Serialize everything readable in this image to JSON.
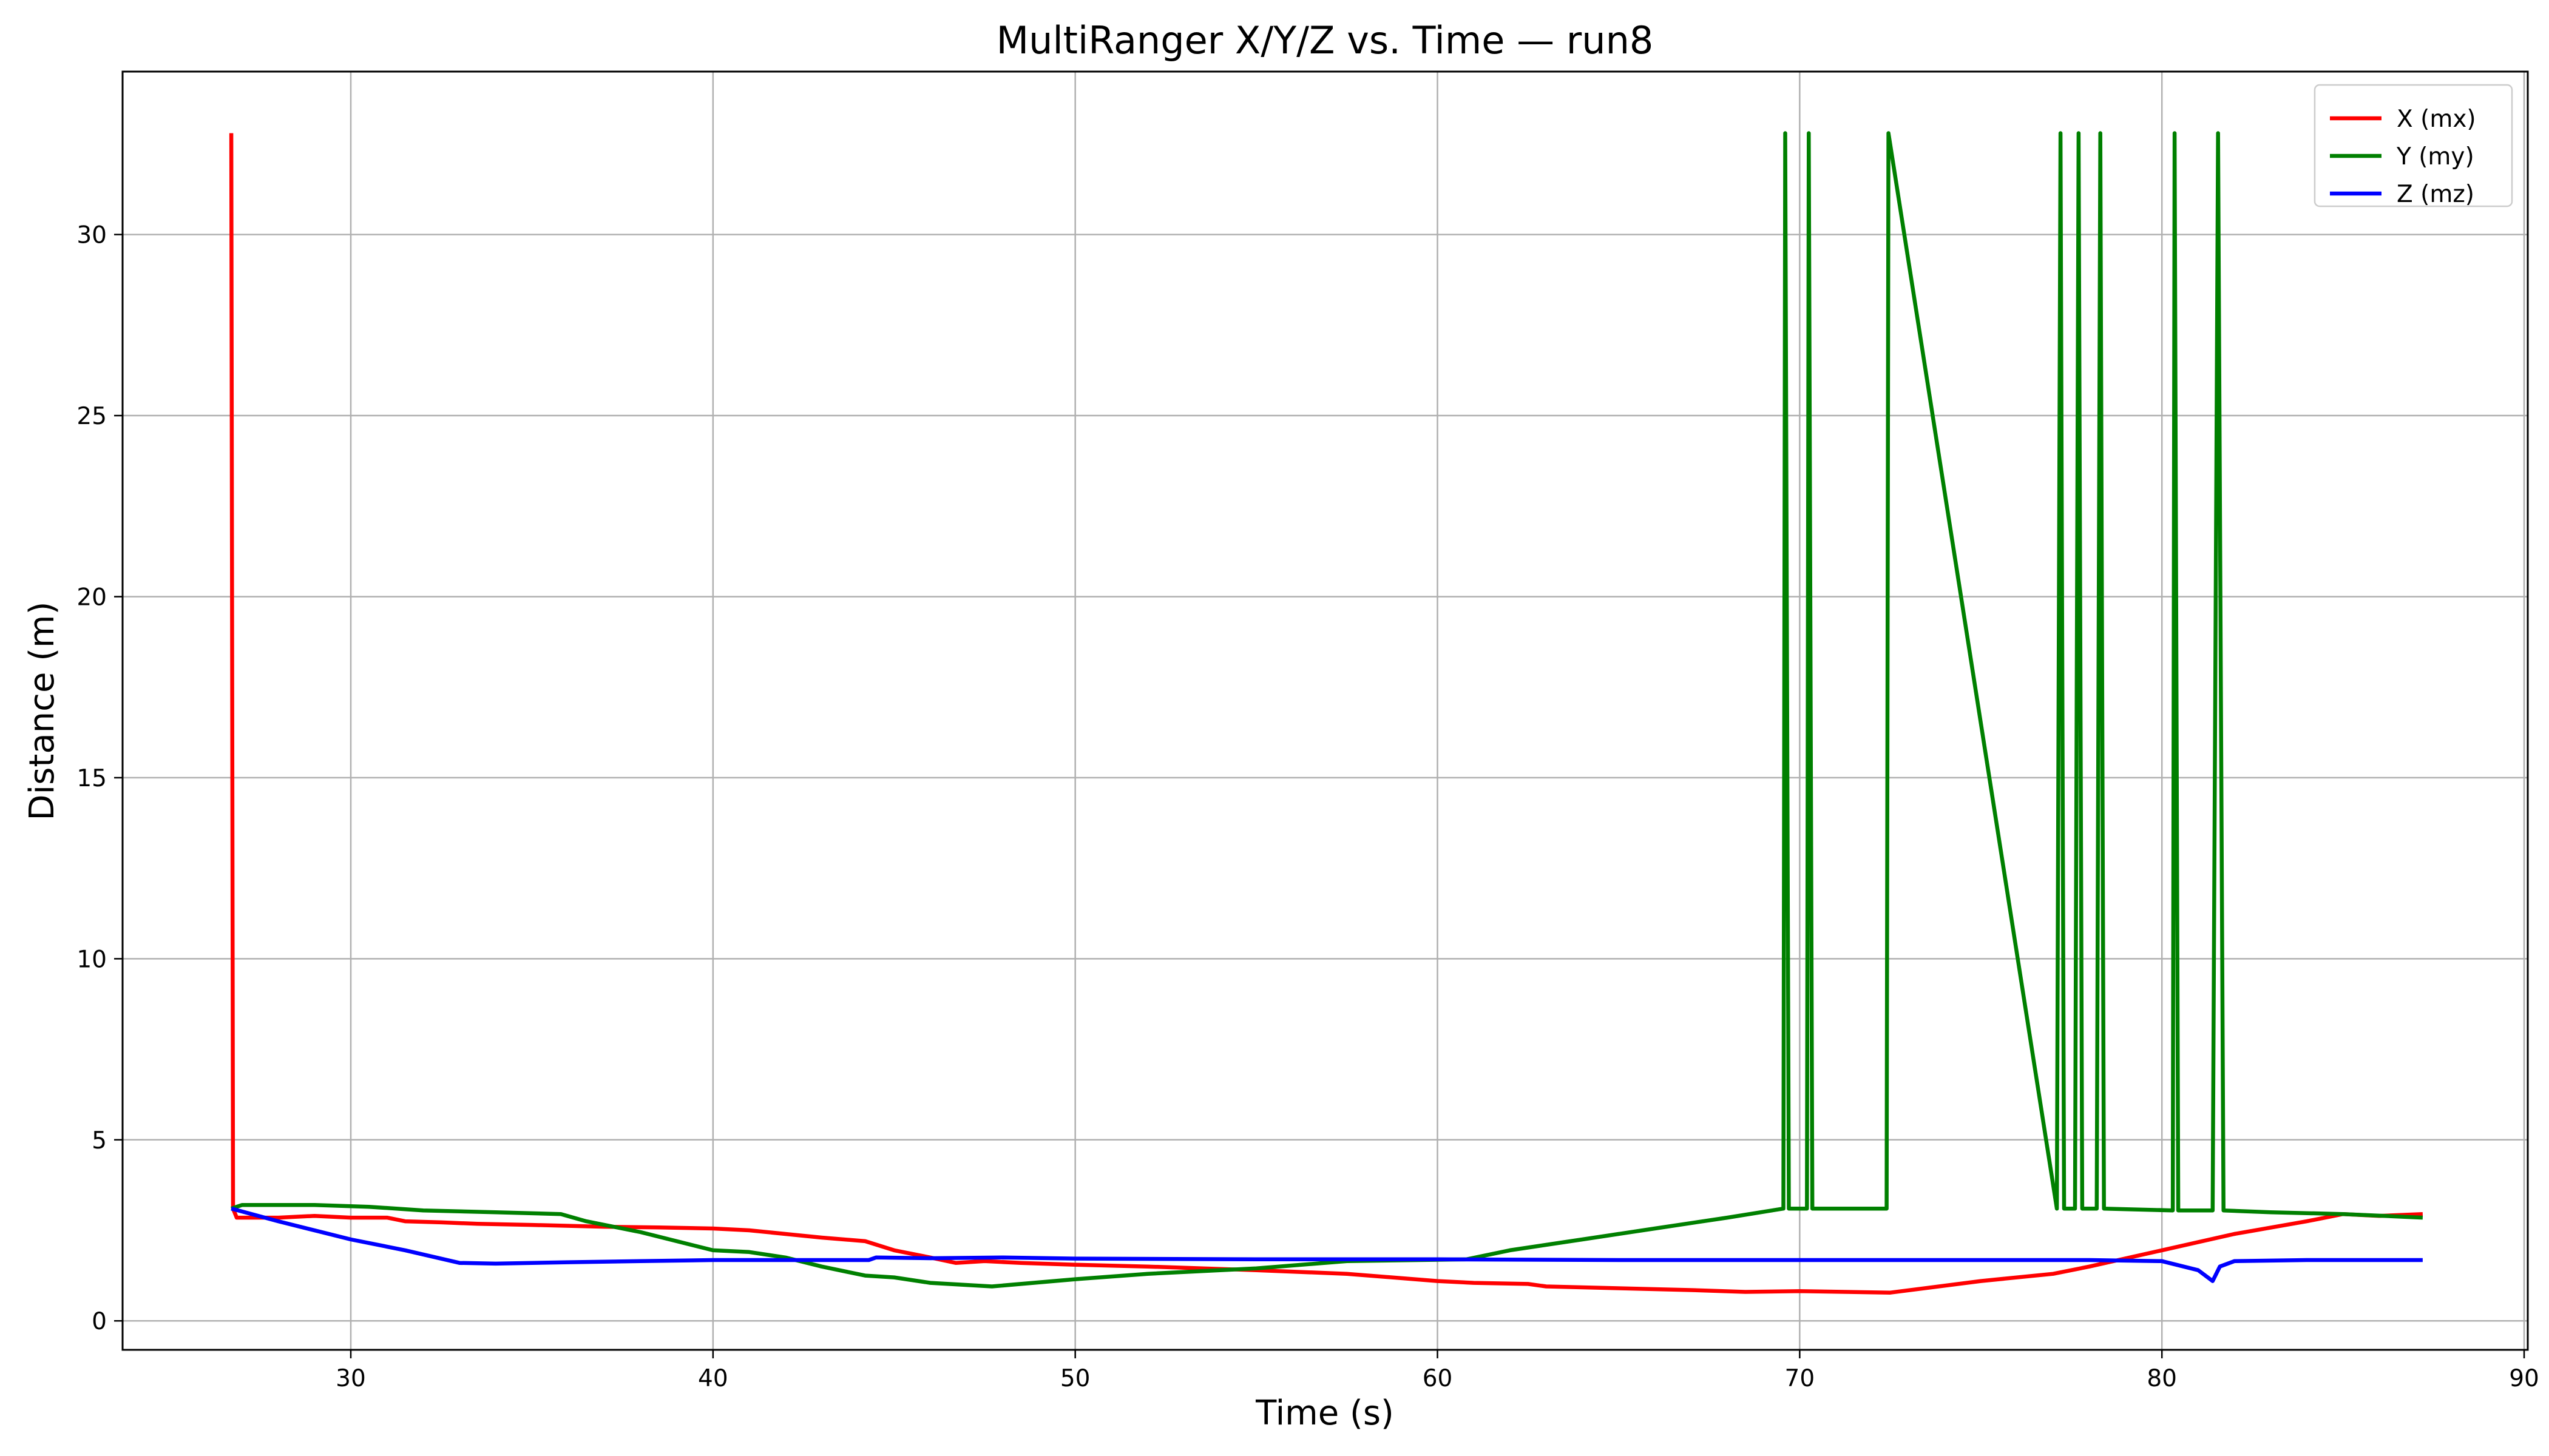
{
  "chart_data": {
    "type": "line",
    "title": "MultiRanger X/Y/Z vs. Time — run8",
    "xlabel": "Time (s)",
    "ylabel": "Distance (m)",
    "xlim": [
      23.7,
      90.1
    ],
    "ylim": [
      -0.8,
      34.5
    ],
    "xticks": [
      30,
      40,
      50,
      60,
      70,
      80,
      90
    ],
    "yticks": [
      0,
      5,
      10,
      15,
      20,
      25,
      30
    ],
    "grid": true,
    "legend_position": "top-right",
    "series": [
      {
        "name": "X (mx)",
        "color": "#ff0000",
        "points": [
          [
            26.7,
            32.8
          ],
          [
            26.75,
            3.1
          ],
          [
            26.85,
            2.85
          ],
          [
            28,
            2.85
          ],
          [
            29,
            2.9
          ],
          [
            30,
            2.85
          ],
          [
            31,
            2.85
          ],
          [
            31.5,
            2.75
          ],
          [
            32.5,
            2.72
          ],
          [
            33.5,
            2.68
          ],
          [
            35,
            2.65
          ],
          [
            37,
            2.6
          ],
          [
            38.5,
            2.58
          ],
          [
            40,
            2.55
          ],
          [
            41,
            2.5
          ],
          [
            42,
            2.4
          ],
          [
            43,
            2.3
          ],
          [
            44.2,
            2.2
          ],
          [
            45,
            1.95
          ],
          [
            46,
            1.75
          ],
          [
            46.7,
            1.6
          ],
          [
            47.5,
            1.65
          ],
          [
            48.5,
            1.6
          ],
          [
            50,
            1.55
          ],
          [
            52,
            1.5
          ],
          [
            55,
            1.4
          ],
          [
            57.5,
            1.3
          ],
          [
            60,
            1.1
          ],
          [
            61,
            1.05
          ],
          [
            62.5,
            1.02
          ],
          [
            63,
            0.95
          ],
          [
            65,
            0.9
          ],
          [
            67,
            0.85
          ],
          [
            68.5,
            0.8
          ],
          [
            70,
            0.82
          ],
          [
            72.5,
            0.78
          ],
          [
            75,
            1.1
          ],
          [
            77,
            1.3
          ],
          [
            78,
            1.5
          ],
          [
            80,
            1.95
          ],
          [
            82,
            2.4
          ],
          [
            84,
            2.75
          ],
          [
            85,
            2.95
          ],
          [
            86,
            2.9
          ],
          [
            87.2,
            2.95
          ]
        ]
      },
      {
        "name": "Y (my)",
        "color": "#008000",
        "points": [
          [
            26.7,
            3.1
          ],
          [
            27,
            3.2
          ],
          [
            29,
            3.2
          ],
          [
            30.5,
            3.15
          ],
          [
            32,
            3.05
          ],
          [
            34,
            3.0
          ],
          [
            35.8,
            2.95
          ],
          [
            36.5,
            2.75
          ],
          [
            38,
            2.45
          ],
          [
            40,
            1.95
          ],
          [
            41,
            1.9
          ],
          [
            42,
            1.75
          ],
          [
            43,
            1.5
          ],
          [
            44.2,
            1.25
          ],
          [
            45,
            1.2
          ],
          [
            46,
            1.05
          ],
          [
            47.7,
            0.95
          ],
          [
            50,
            1.15
          ],
          [
            52,
            1.3
          ],
          [
            55,
            1.45
          ],
          [
            57.5,
            1.65
          ],
          [
            60.8,
            1.7
          ],
          [
            62,
            1.95
          ],
          [
            64,
            2.25
          ],
          [
            66,
            2.55
          ],
          [
            68,
            2.85
          ],
          [
            69.55,
            3.1
          ],
          [
            69.6,
            32.8
          ],
          [
            69.7,
            3.1
          ],
          [
            70.2,
            3.1
          ],
          [
            70.25,
            32.8
          ],
          [
            70.35,
            3.1
          ],
          [
            72.4,
            3.1
          ],
          [
            72.45,
            32.8
          ],
          [
            77.1,
            3.1
          ],
          [
            77.2,
            32.8
          ],
          [
            77.3,
            3.1
          ],
          [
            77.6,
            3.1
          ],
          [
            77.7,
            32.8
          ],
          [
            77.8,
            3.1
          ],
          [
            78.2,
            3.1
          ],
          [
            78.3,
            32.8
          ],
          [
            78.4,
            3.1
          ],
          [
            80.3,
            3.05
          ],
          [
            80.35,
            32.8
          ],
          [
            80.45,
            3.05
          ],
          [
            81.4,
            3.05
          ],
          [
            81.55,
            32.8
          ],
          [
            81.7,
            3.05
          ],
          [
            83,
            3.0
          ],
          [
            85,
            2.95
          ],
          [
            87.2,
            2.85
          ]
        ]
      },
      {
        "name": "Z (mz)",
        "color": "#0000ff",
        "points": [
          [
            26.7,
            3.1
          ],
          [
            28,
            2.75
          ],
          [
            30,
            2.25
          ],
          [
            31.5,
            1.95
          ],
          [
            33,
            1.6
          ],
          [
            34,
            1.58
          ],
          [
            36,
            1.62
          ],
          [
            38,
            1.65
          ],
          [
            40,
            1.68
          ],
          [
            42,
            1.68
          ],
          [
            44.3,
            1.68
          ],
          [
            44.5,
            1.75
          ],
          [
            46,
            1.73
          ],
          [
            48,
            1.75
          ],
          [
            50,
            1.72
          ],
          [
            55,
            1.7
          ],
          [
            60,
            1.7
          ],
          [
            65,
            1.68
          ],
          [
            70,
            1.68
          ],
          [
            75,
            1.68
          ],
          [
            78,
            1.68
          ],
          [
            80,
            1.65
          ],
          [
            81,
            1.4
          ],
          [
            81.4,
            1.1
          ],
          [
            81.6,
            1.5
          ],
          [
            82,
            1.65
          ],
          [
            84,
            1.68
          ],
          [
            87.2,
            1.68
          ]
        ]
      }
    ]
  }
}
